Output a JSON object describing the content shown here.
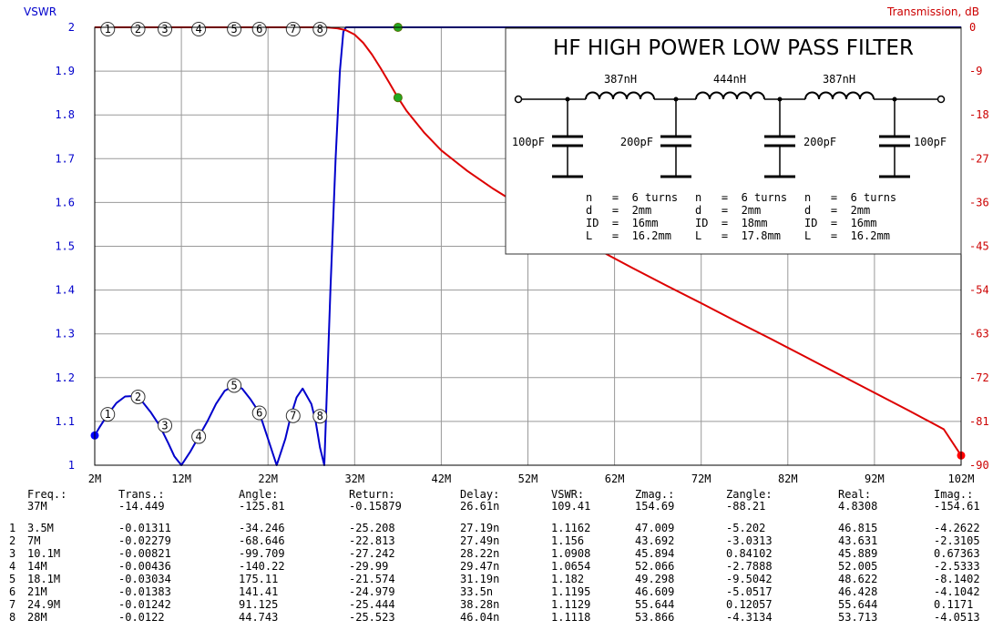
{
  "chart_data": {
    "type": "line",
    "title": "HF HIGH POWER LOW PASS FILTER",
    "left_axis_label": "VSWR",
    "right_axis_label": "Transmission, dB",
    "x_ticks": [
      "2M",
      "12M",
      "22M",
      "32M",
      "42M",
      "52M",
      "62M",
      "72M",
      "82M",
      "92M",
      "102M"
    ],
    "xlim": [
      2,
      102
    ],
    "left_ticks": [
      "2",
      "1.9",
      "1.8",
      "1.7",
      "1.6",
      "1.5",
      "1.4",
      "1.3",
      "1.2",
      "1.1",
      "1"
    ],
    "ylim_left": [
      1,
      2
    ],
    "right_ticks": [
      "0",
      "-9",
      "-18",
      "-27",
      "-36",
      "-45",
      "-54",
      "-63",
      "-72",
      "-81",
      "-90"
    ],
    "ylim_right": [
      -90,
      0
    ],
    "grid": true,
    "legend": "none",
    "colors": {
      "vswr": "#0000cc",
      "transmission": "#dd0000",
      "marker": "#22aa22",
      "axis_left": "#0000cc",
      "axis_right": "#cc0000",
      "grid": "#999999"
    },
    "series": [
      {
        "axis": "left",
        "x": [
          2,
          2.5,
          3.5,
          4.5,
          5.5,
          6.5,
          7.5,
          8.5,
          9.5,
          10.5,
          11.2,
          12,
          13,
          14,
          15,
          16,
          17,
          18.1,
          19,
          20,
          21,
          22,
          23,
          24,
          24.6,
          25.3,
          26,
          27,
          27.5,
          28,
          28.5,
          29.2,
          29.8,
          30.3,
          30.7,
          31,
          31.2,
          32,
          40,
          60,
          80,
          102
        ],
        "y": [
          1.068,
          1.085,
          1.116,
          1.142,
          1.157,
          1.158,
          1.145,
          1.12,
          1.09,
          1.05,
          1.02,
          1.0,
          1.03,
          1.065,
          1.1,
          1.14,
          1.17,
          1.182,
          1.175,
          1.15,
          1.12,
          1.06,
          1.0,
          1.06,
          1.11,
          1.155,
          1.175,
          1.14,
          1.1,
          1.04,
          1.0,
          1.4,
          1.7,
          1.9,
          1.99,
          2.0,
          2.0,
          2.0,
          2.0,
          2.0,
          2.0,
          2.0
        ]
      },
      {
        "axis": "right",
        "x": [
          2,
          10,
          20,
          28,
          29,
          30,
          31,
          32,
          33,
          34,
          35,
          36,
          37,
          38,
          40,
          42,
          45,
          48,
          52,
          56,
          60,
          64,
          68,
          72,
          76,
          80,
          84,
          88,
          92,
          96,
          100,
          102
        ],
        "y": [
          0,
          0,
          0,
          0,
          -0.05,
          -0.2,
          -0.6,
          -1.5,
          -3.2,
          -5.6,
          -8.4,
          -11.4,
          -14.449,
          -17.2,
          -21.6,
          -25.3,
          -29.5,
          -33.2,
          -37.6,
          -41.7,
          -45.6,
          -49.4,
          -53.1,
          -56.7,
          -60.4,
          -64.0,
          -67.7,
          -71.4,
          -75.1,
          -78.8,
          -82.6,
          -88.0
        ]
      }
    ],
    "vswr_markers": [
      {
        "label": "1",
        "x": 3.5,
        "y": 1.1162
      },
      {
        "label": "2",
        "x": 7.0,
        "y": 1.156
      },
      {
        "label": "3",
        "x": 10.1,
        "y": 1.0908
      },
      {
        "label": "4",
        "x": 14.0,
        "y": 1.0654
      },
      {
        "label": "5",
        "x": 18.1,
        "y": 1.182
      },
      {
        "label": "6",
        "x": 21.0,
        "y": 1.1195
      },
      {
        "label": "7",
        "x": 24.9,
        "y": 1.1129
      },
      {
        "label": "8",
        "x": 28.0,
        "y": 1.1118
      }
    ],
    "trans_markers": [
      {
        "label": "1",
        "x": 3.5
      },
      {
        "label": "2",
        "x": 7.0
      },
      {
        "label": "3",
        "x": 10.1
      },
      {
        "label": "4",
        "x": 14.0
      },
      {
        "label": "5",
        "x": 18.1
      },
      {
        "label": "6",
        "x": 21.0
      },
      {
        "label": "7",
        "x": 24.9
      },
      {
        "label": "8",
        "x": 28.0
      }
    ],
    "cursor_points": [
      {
        "series": "vswr",
        "x": 37,
        "y": 2.0
      },
      {
        "series": "transmission",
        "x": 37,
        "y": -14.449
      }
    ],
    "endpoints": [
      {
        "series": "vswr",
        "x": 2,
        "y": 1.068
      },
      {
        "series": "transmission",
        "x": 102,
        "y": -88.0
      }
    ]
  },
  "schematic": {
    "inductors": [
      "387nH",
      "444nH",
      "387nH"
    ],
    "capacitors": [
      "100pF",
      "200pF",
      "200pF",
      "100pF"
    ],
    "specs": [
      [
        "n   =  6 turns",
        "d   =  2mm",
        "ID  =  16mm",
        "L   =  16.2mm"
      ],
      [
        "n   =  6 turns",
        "d   =  2mm",
        "ID  =  18mm",
        "L   =  17.8mm"
      ],
      [
        "n   =  6 turns",
        "d   =  2mm",
        "ID  =  16mm",
        "L   =  16.2mm"
      ]
    ]
  },
  "table": {
    "headers": [
      "Freq.:",
      "Trans.:",
      "Angle:",
      "Return:",
      "Delay:",
      "VSWR:",
      "Zmag.:",
      "Zangle:",
      "Real:",
      "Imag.:"
    ],
    "cursor": [
      "37M",
      "-14.449",
      "-125.81",
      "-0.15879",
      "26.61n",
      "109.41",
      "154.69",
      "-88.21",
      "4.8308",
      "-154.61"
    ],
    "rows": [
      [
        "1",
        "3.5M",
        "-0.01311",
        "-34.246",
        "-25.208",
        "27.19n",
        "1.1162",
        "47.009",
        "-5.202",
        "46.815",
        "-4.2622"
      ],
      [
        "2",
        "7M",
        "-0.02279",
        "-68.646",
        "-22.813",
        "27.49n",
        "1.156",
        "43.692",
        "-3.0313",
        "43.631",
        "-2.3105"
      ],
      [
        "3",
        "10.1M",
        "-0.00821",
        "-99.709",
        "-27.242",
        "28.22n",
        "1.0908",
        "45.894",
        "0.84102",
        "45.889",
        "0.67363"
      ],
      [
        "4",
        "14M",
        "-0.00436",
        "-140.22",
        "-29.99",
        "29.47n",
        "1.0654",
        "52.066",
        "-2.7888",
        "52.005",
        "-2.5333"
      ],
      [
        "5",
        "18.1M",
        "-0.03034",
        "175.11",
        "-21.574",
        "31.19n",
        "1.182",
        "49.298",
        "-9.5042",
        "48.622",
        "-8.1402"
      ],
      [
        "6",
        "21M",
        "-0.01383",
        "141.41",
        "-24.979",
        "33.5n",
        "1.1195",
        "46.609",
        "-5.0517",
        "46.428",
        "-4.1042"
      ],
      [
        "7",
        "24.9M",
        "-0.01242",
        "91.125",
        "-25.444",
        "38.28n",
        "1.1129",
        "55.644",
        "0.12057",
        "55.644",
        "0.1171"
      ],
      [
        "8",
        "28M",
        "-0.0122",
        "44.743",
        "-25.523",
        "46.04n",
        "1.1118",
        "53.866",
        "-4.3134",
        "53.713",
        "-4.0513"
      ]
    ]
  }
}
